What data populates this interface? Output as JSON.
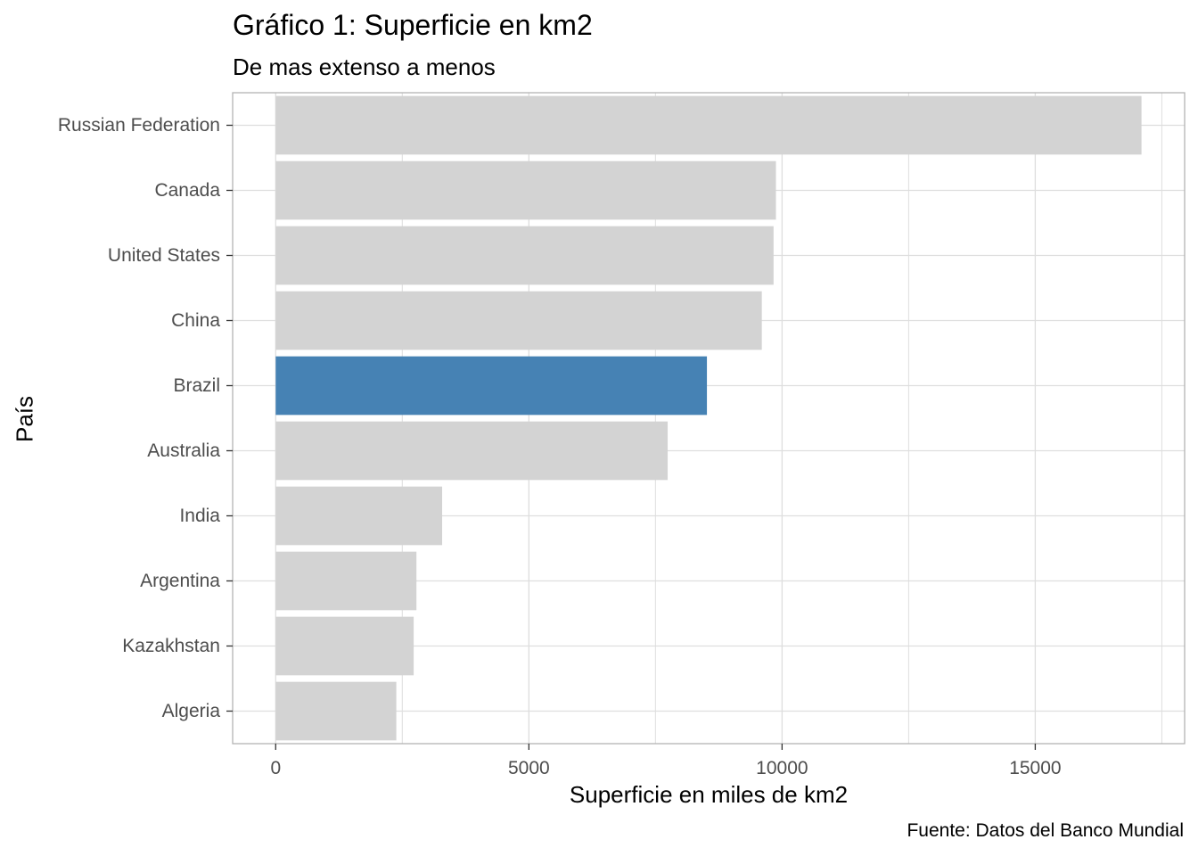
{
  "chart_data": {
    "type": "bar",
    "orientation": "horizontal",
    "title": "Gráfico 1: Superficie en km2",
    "subtitle": "De mas extenso a menos",
    "xlabel": "Superficie en miles de km2",
    "ylabel": "País",
    "caption": "Fuente: Datos del Banco Mundial",
    "categories": [
      "Russian Federation",
      "Canada",
      "United States",
      "China",
      "Brazil",
      "Australia",
      "India",
      "Argentina",
      "Kazakhstan",
      "Algeria"
    ],
    "values": [
      17098,
      9879,
      9832,
      9600,
      8516,
      7741,
      3287,
      2780,
      2725,
      2382
    ],
    "highlight": "Brazil",
    "colors": {
      "default": "#d3d3d3",
      "highlight": "#4682b4",
      "grid": "#dedede",
      "border": "#b3b3b3"
    },
    "xlim": [
      -850,
      17950
    ],
    "xticks": [
      0,
      5000,
      10000,
      15000
    ],
    "grid": true,
    "legend": "none"
  }
}
